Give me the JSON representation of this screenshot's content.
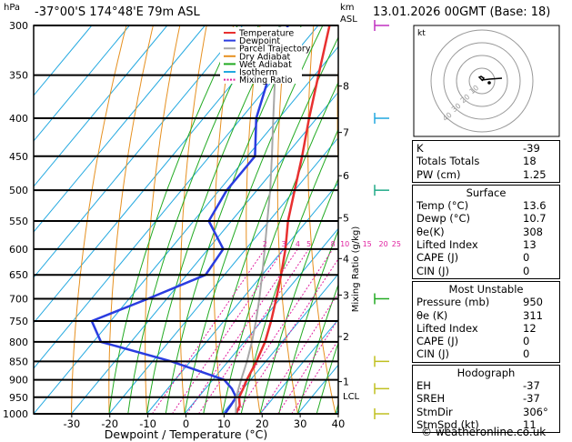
{
  "header": {
    "hpa_label": "hPa",
    "location": "-37°00'S  174°48'E  79m  ASL",
    "km_label": "km",
    "asl_label": "ASL",
    "datetime": "13.01.2026  00GMT  (Base: 18)"
  },
  "chart_data": {
    "type": "skew-t",
    "title": "-37°00'S  174°48'E  79m  ASL",
    "xlabel": "Dewpoint / Temperature (°C)",
    "ylabel": "hPa",
    "pressure_levels": [
      300,
      350,
      400,
      450,
      500,
      550,
      600,
      650,
      700,
      750,
      800,
      850,
      900,
      950,
      1000
    ],
    "temp_ticks": [
      -30,
      -20,
      -10,
      0,
      10,
      20,
      30,
      40
    ],
    "xlim": [
      -40,
      40
    ],
    "ylim": [
      1000,
      300
    ],
    "km_ticks": [
      "8",
      "7",
      "6",
      "5",
      "4",
      "3",
      "2",
      "1"
    ],
    "km_pressures": [
      362,
      418,
      478,
      545,
      618,
      692,
      787,
      905
    ],
    "lcl_label": "LCL",
    "mixing_ratio_axis": "Mixing Ratio (g/kg)",
    "mixing_ratio_values": [
      "2",
      "3",
      "4",
      "5",
      "8",
      "10",
      "15",
      "20",
      "25"
    ],
    "mixing_ratio_numbers": [
      2,
      3,
      4,
      5,
      8,
      10,
      15,
      20,
      25
    ],
    "series": [
      {
        "name": "Temperature",
        "color": "#e83030",
        "points": [
          [
            1000,
            13.6
          ],
          [
            975,
            12.8
          ],
          [
            950,
            10.8
          ],
          [
            925,
            10.0
          ],
          [
            900,
            9.0
          ],
          [
            850,
            7.5
          ],
          [
            800,
            5.5
          ],
          [
            750,
            2.5
          ],
          [
            700,
            -1.0
          ],
          [
            650,
            -5.0
          ],
          [
            600,
            -9.5
          ],
          [
            550,
            -15.0
          ],
          [
            500,
            -20.0
          ],
          [
            450,
            -25.5
          ],
          [
            400,
            -32.0
          ],
          [
            350,
            -39.0
          ],
          [
            300,
            -47.0
          ]
        ]
      },
      {
        "name": "Dewpoint",
        "color": "#2a3ce0",
        "points": [
          [
            1000,
            10.7
          ],
          [
            975,
            10.4
          ],
          [
            950,
            10.0
          ],
          [
            925,
            7.0
          ],
          [
            900,
            3.0
          ],
          [
            850,
            -15.0
          ],
          [
            800,
            -38.0
          ],
          [
            750,
            -45.0
          ],
          [
            700,
            -35.0
          ],
          [
            650,
            -25.0
          ],
          [
            600,
            -26.0
          ],
          [
            550,
            -36.0
          ],
          [
            500,
            -38.0
          ],
          [
            450,
            -38.0
          ],
          [
            400,
            -46.0
          ],
          [
            350,
            -52.0
          ],
          [
            300,
            -58.0
          ]
        ]
      },
      {
        "name": "Parcel Trajectory",
        "color": "#a8a8a8",
        "points": [
          [
            1000,
            13.6
          ],
          [
            950,
            10.0
          ],
          [
            900,
            7.5
          ],
          [
            850,
            5.0
          ],
          [
            800,
            2.0
          ],
          [
            750,
            -1.5
          ],
          [
            700,
            -5.5
          ],
          [
            650,
            -10.0
          ],
          [
            600,
            -15.0
          ],
          [
            550,
            -20.5
          ],
          [
            500,
            -26.5
          ],
          [
            450,
            -33.5
          ],
          [
            400,
            -41.5
          ],
          [
            350,
            -50.5
          ],
          [
            300,
            -60.0
          ]
        ]
      }
    ],
    "legend": [
      "Temperature",
      "Dewpoint",
      "Parcel Trajectory",
      "Dry Adiabat",
      "Wet Adiabat",
      "Isotherm",
      "Mixing Ratio"
    ],
    "legend_colors": [
      "#e83030",
      "#2a3ce0",
      "#a8a8a8",
      "#e69020",
      "#22aa22",
      "#22a8e0",
      "#e020a0"
    ],
    "legend_dashed": [
      false,
      false,
      false,
      false,
      false,
      false,
      true
    ],
    "hodograph": {
      "label": "kt",
      "ring_labels": [
        "10",
        "20",
        "30",
        "40"
      ],
      "points": [
        [
          0,
          0
        ],
        [
          2,
          3
        ],
        [
          -1,
          5
        ],
        [
          -3,
          4
        ],
        [
          0,
          1
        ],
        [
          8,
          2
        ],
        [
          22,
          3
        ]
      ]
    },
    "wind_barbs": [
      {
        "pressure": 300,
        "color": "#c030c0"
      },
      {
        "pressure": 400,
        "color": "#22a8e0"
      },
      {
        "pressure": 500,
        "color": "#22aa88"
      },
      {
        "pressure": 700,
        "color": "#22aa22"
      },
      {
        "pressure": 850,
        "color": "#c0c020"
      },
      {
        "pressure": 925,
        "color": "#c0c020"
      },
      {
        "pressure": 1000,
        "color": "#c0c020"
      }
    ]
  },
  "indices": {
    "block1": [
      {
        "label": "K",
        "value": "-39"
      },
      {
        "label": "Totals Totals",
        "value": "18"
      },
      {
        "label": "PW (cm)",
        "value": "1.25"
      }
    ],
    "surface": {
      "title": "Surface",
      "rows": [
        {
          "label": "Temp (°C)",
          "value": "13.6"
        },
        {
          "label": "Dewp (°C)",
          "value": "10.7"
        },
        {
          "label": "θe(K)",
          "value": "308"
        },
        {
          "label": "Lifted Index",
          "value": "13"
        },
        {
          "label": "CAPE (J)",
          "value": "0"
        },
        {
          "label": "CIN (J)",
          "value": "0"
        }
      ]
    },
    "most_unstable": {
      "title": "Most Unstable",
      "rows": [
        {
          "label": "Pressure (mb)",
          "value": "950"
        },
        {
          "label": "θe (K)",
          "value": "311"
        },
        {
          "label": "Lifted Index",
          "value": "12"
        },
        {
          "label": "CAPE (J)",
          "value": "0"
        },
        {
          "label": "CIN (J)",
          "value": "0"
        }
      ]
    },
    "hodograph": {
      "title": "Hodograph",
      "rows": [
        {
          "label": "EH",
          "value": "-37"
        },
        {
          "label": "SREH",
          "value": "-37"
        },
        {
          "label": "StmDir",
          "value": "306°"
        },
        {
          "label": "StmSpd (kt)",
          "value": "11"
        }
      ]
    }
  },
  "footer": "© weatheronline.co.uk"
}
